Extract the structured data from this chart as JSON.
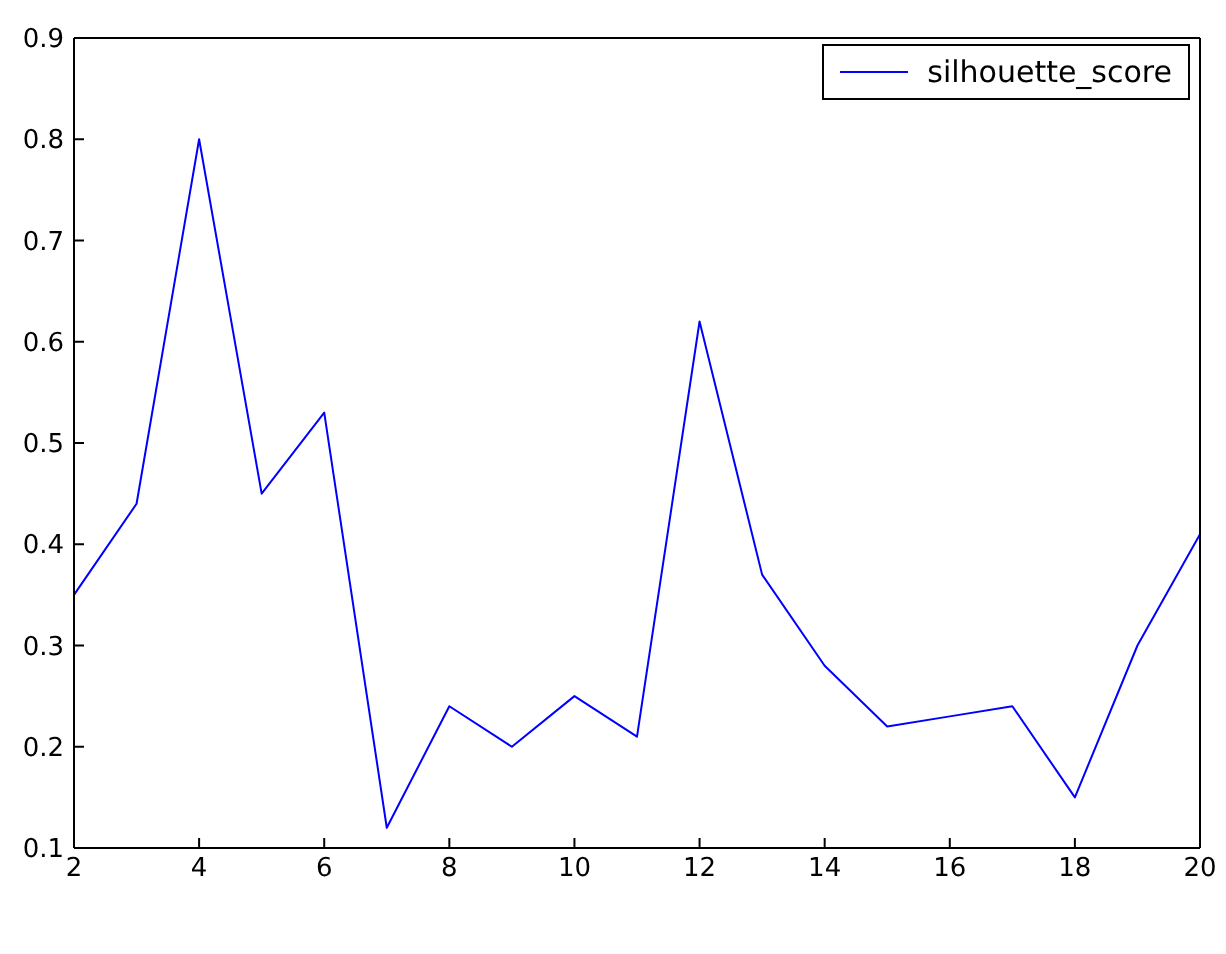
{
  "chart_data": {
    "type": "line",
    "x": [
      2,
      3,
      4,
      5,
      6,
      7,
      8,
      9,
      10,
      11,
      12,
      13,
      14,
      15,
      16,
      17,
      18,
      19,
      20
    ],
    "series": [
      {
        "name": "silhouette_score",
        "color": "#0000ff",
        "values": [
          0.35,
          0.44,
          0.8,
          0.45,
          0.53,
          0.12,
          0.24,
          0.2,
          0.25,
          0.21,
          0.62,
          0.37,
          0.28,
          0.22,
          0.23,
          0.24,
          0.15,
          0.3,
          0.41
        ]
      }
    ],
    "xlim": [
      2,
      20
    ],
    "xticks": [
      2,
      4,
      6,
      8,
      10,
      12,
      14,
      16,
      18,
      20
    ],
    "ylim": [
      0.1,
      0.9
    ],
    "yticks": [
      0.1,
      0.2,
      0.3,
      0.4,
      0.5,
      0.6,
      0.7,
      0.8,
      0.9
    ],
    "legend": "top right",
    "marker": "none",
    "line_style": "solid"
  }
}
